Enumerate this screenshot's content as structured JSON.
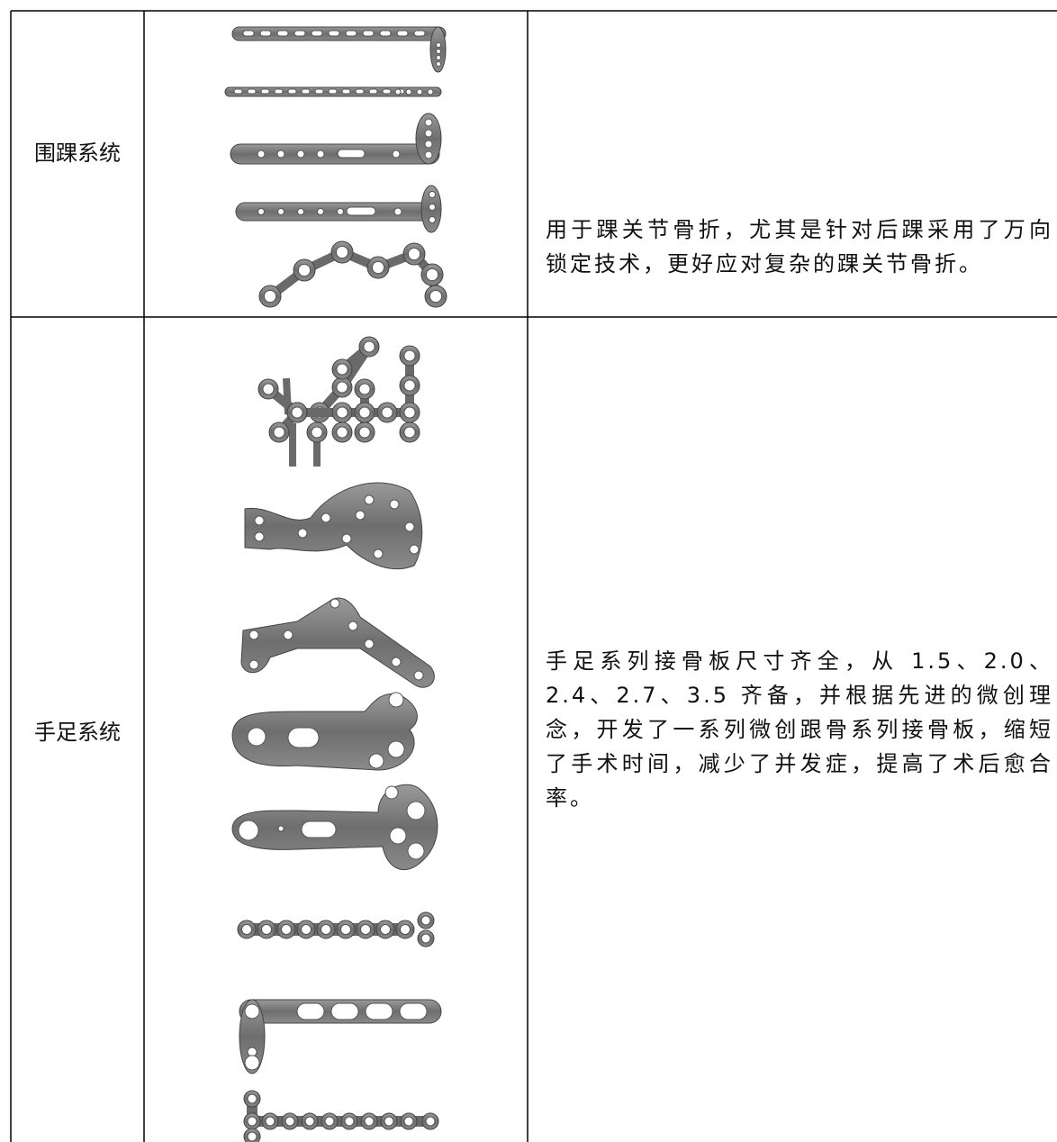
{
  "rows": [
    {
      "name": "围踝系统",
      "description": "用于踝关节骨折，尤其是针对后踝采用了万向锁定技术，更好应对复杂的踝关节骨折。"
    },
    {
      "name": "手足系统",
      "description": "手足系列接骨板尺寸齐全，从 1.5、2.0、2.4、2.7、3.5 齐备，并根据先进的微创理念，开发了一系列微创跟骨系列接骨板，缩短了手术时间，减少了并发症，提高了术后愈合率。"
    }
  ]
}
